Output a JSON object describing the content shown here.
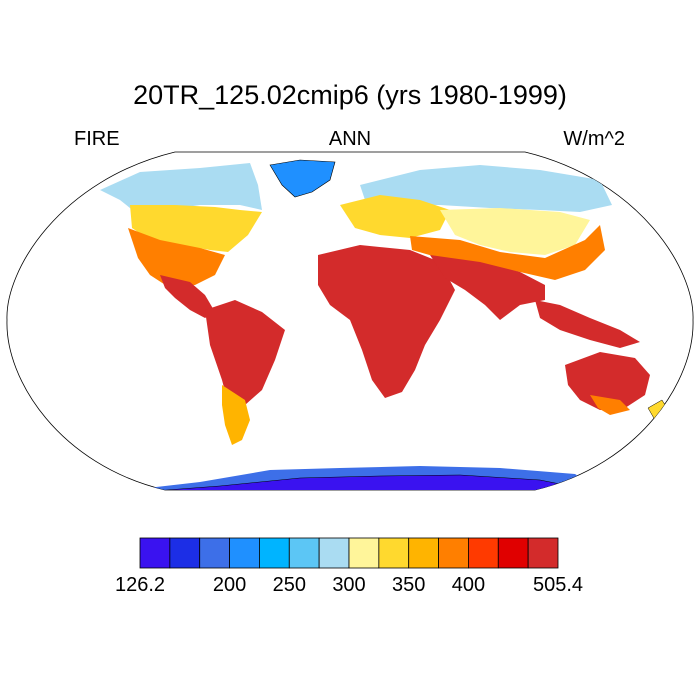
{
  "title": "20TR_125.02cmip6 (yrs 1980-1999)",
  "subtitle_left": "FIRE",
  "subtitle_center": "ANN",
  "subtitle_right": "W/m^2",
  "colorbar": {
    "colors": [
      "#3a12f0",
      "#1c2ee6",
      "#3d6fe8",
      "#1f90ff",
      "#00b4ff",
      "#5cc6f5",
      "#aadcf2",
      "#fff59a",
      "#ffd92e",
      "#ffb400",
      "#ff7f00",
      "#ff3a00",
      "#e00000",
      "#d32b2b"
    ],
    "labels": [
      "126.2",
      "200",
      "250",
      "300",
      "350",
      "400",
      "505.4"
    ]
  },
  "legend_text": "colorbar"
}
